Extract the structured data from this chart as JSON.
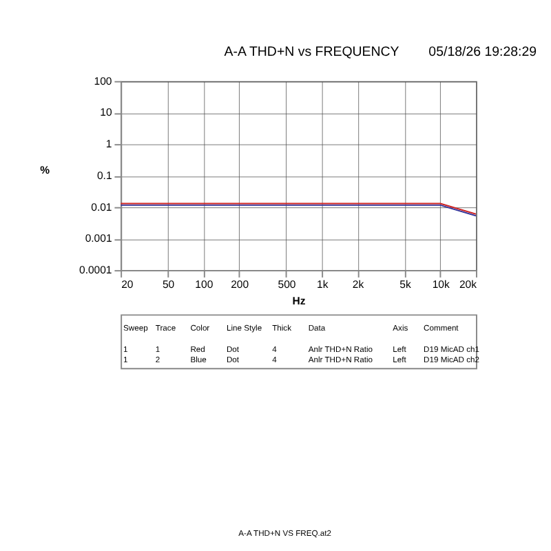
{
  "chart_data": {
    "type": "line",
    "title": "A-A THD+N vs FREQUENCY",
    "subtitle": "05/18/26 19:28:29",
    "xlabel": "Hz",
    "ylabel": "%",
    "log": "xy",
    "grid": true,
    "legend": false,
    "line_style": "solid",
    "marker": "none",
    "x": [
      20,
      50,
      100,
      200,
      500,
      1000,
      2000,
      5000,
      10000,
      20000
    ],
    "series": [
      {
        "color": "#cc2222",
        "values": [
          0.013,
          0.013,
          0.013,
          0.013,
          0.013,
          0.013,
          0.013,
          0.013,
          0.013,
          0.006
        ]
      },
      {
        "color": "#333399",
        "values": [
          0.0115,
          0.0115,
          0.0115,
          0.0115,
          0.0115,
          0.0115,
          0.0115,
          0.0115,
          0.0115,
          0.0053
        ]
      }
    ],
    "xlim": [
      20,
      20000
    ],
    "ylim": [
      0.0001,
      100
    ],
    "xticks": [
      20,
      50,
      100,
      200,
      500,
      {
        "value": 1000,
        "label": "1k"
      },
      {
        "value": 2000,
        "label": "2k"
      },
      {
        "value": 5000,
        "label": "5k"
      },
      {
        "value": 10000,
        "label": "10k"
      },
      {
        "value": 20000,
        "label": "20k"
      }
    ],
    "yticks": [
      {
        "value": 0.0001,
        "label": "0.0001"
      },
      {
        "value": 0.001,
        "label": "0.001"
      },
      {
        "value": 0.01,
        "label": "0.01"
      },
      {
        "value": 0.1,
        "label": "0.1"
      },
      1,
      10,
      100
    ],
    "annotations": [
      "Sweep",
      "Trace",
      "Color",
      "Line Style",
      "Thick",
      "Data",
      "Axis",
      "Comment",
      "1",
      "1",
      "Red",
      "Dot",
      "4",
      "Anlr THD+N Ratio",
      "Left",
      "D19 MicAD ch1",
      "1",
      "2",
      "Blue",
      "Dot",
      "4",
      "Anlr THD+N Ratio",
      "Left",
      "D19 MicAD ch2",
      "A-A THD+N VS FREQ.at2"
    ]
  }
}
